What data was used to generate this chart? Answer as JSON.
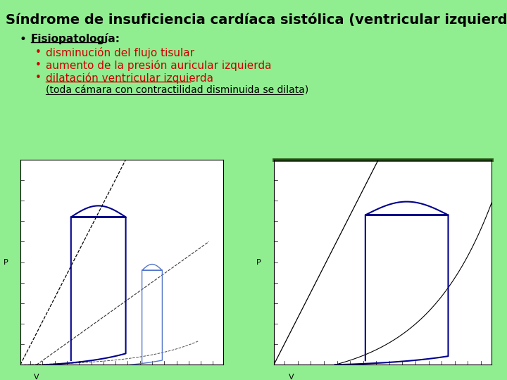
{
  "bg_color": "#90EE90",
  "title": "Síndrome de insuficiencia cardíaca sistólica (ventricular izquierda)",
  "title_fontsize": 13,
  "bullet1_text": "Fisiopatología:",
  "sub_bullet1": "disminución del flujo tisular",
  "sub_bullet2": "aumento de la presión auricular izquierda",
  "sub_bullet3": "dilatación ventricular izquierda",
  "note": "(toda cámara con contractilidad disminuida se dilata)",
  "red_color": "#cc0000",
  "black_color": "#000000",
  "graph_bg": "#ffffff"
}
